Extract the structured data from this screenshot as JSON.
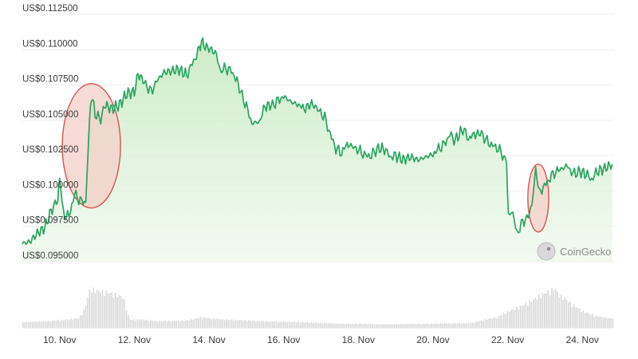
{
  "chart_data": {
    "type": "area",
    "source_watermark": "CoinGecko",
    "grid": true,
    "y_axis": {
      "ticks": [
        "US$0.112500",
        "US$0.110000",
        "US$0.107500",
        "US$0.105000",
        "US$0.102500",
        "US$0.100000",
        "US$0.097500",
        "US$0.095000"
      ],
      "values": [
        0.1125,
        0.11,
        0.1075,
        0.105,
        0.1025,
        0.1,
        0.0975,
        0.095
      ],
      "ylim": [
        0.095,
        0.1125
      ]
    },
    "x_axis": {
      "ticks": [
        "10. Nov",
        "12. Nov",
        "14. Nov",
        "16. Nov",
        "18. Nov",
        "20. Nov",
        "22. Nov",
        "24. Nov"
      ],
      "tick_days": [
        10,
        12,
        14,
        16,
        18,
        20,
        22,
        24
      ],
      "xlim": [
        9.0,
        24.85
      ]
    },
    "series": [
      {
        "type": "line",
        "color": "#2aa460",
        "fill": "#d7f0d2",
        "points": [
          [
            9.0,
            0.0963
          ],
          [
            9.2,
            0.0964
          ],
          [
            9.4,
            0.097
          ],
          [
            9.6,
            0.0974
          ],
          [
            9.8,
            0.0988
          ],
          [
            9.95,
            0.0993
          ],
          [
            10.0,
            0.1009
          ],
          [
            10.1,
            0.0984
          ],
          [
            10.25,
            0.0982
          ],
          [
            10.4,
            0.0998
          ],
          [
            10.55,
            0.0993
          ],
          [
            10.7,
            0.0992
          ],
          [
            10.8,
            0.105
          ],
          [
            10.85,
            0.1068
          ],
          [
            10.95,
            0.1055
          ],
          [
            11.1,
            0.105
          ],
          [
            11.2,
            0.1061
          ],
          [
            11.4,
            0.1058
          ],
          [
            11.6,
            0.1061
          ],
          [
            11.8,
            0.1069
          ],
          [
            12.0,
            0.107
          ],
          [
            12.1,
            0.1083
          ],
          [
            12.3,
            0.1076
          ],
          [
            12.45,
            0.107
          ],
          [
            12.6,
            0.1078
          ],
          [
            12.8,
            0.1084
          ],
          [
            13.0,
            0.1085
          ],
          [
            13.2,
            0.1086
          ],
          [
            13.4,
            0.1082
          ],
          [
            13.55,
            0.109
          ],
          [
            13.7,
            0.1098
          ],
          [
            13.8,
            0.1106
          ],
          [
            13.9,
            0.1102
          ],
          [
            14.0,
            0.1101
          ],
          [
            14.2,
            0.1097
          ],
          [
            14.3,
            0.1085
          ],
          [
            14.45,
            0.1087
          ],
          [
            14.6,
            0.1085
          ],
          [
            14.75,
            0.1078
          ],
          [
            14.85,
            0.107
          ],
          [
            15.0,
            0.106
          ],
          [
            15.15,
            0.1048
          ],
          [
            15.35,
            0.1049
          ],
          [
            15.5,
            0.106
          ],
          [
            15.7,
            0.1061
          ],
          [
            15.85,
            0.1064
          ],
          [
            16.0,
            0.1067
          ],
          [
            16.2,
            0.1063
          ],
          [
            16.4,
            0.1061
          ],
          [
            16.55,
            0.1058
          ],
          [
            16.75,
            0.1062
          ],
          [
            16.95,
            0.1057
          ],
          [
            17.1,
            0.1052
          ],
          [
            17.25,
            0.104
          ],
          [
            17.4,
            0.103
          ],
          [
            17.55,
            0.1027
          ],
          [
            17.7,
            0.1033
          ],
          [
            17.9,
            0.1031
          ],
          [
            18.05,
            0.1028
          ],
          [
            18.2,
            0.1025
          ],
          [
            18.35,
            0.1025
          ],
          [
            18.5,
            0.103
          ],
          [
            18.7,
            0.103
          ],
          [
            18.85,
            0.1024
          ],
          [
            19.0,
            0.1025
          ],
          [
            19.2,
            0.1022
          ],
          [
            19.4,
            0.1024
          ],
          [
            19.6,
            0.1022
          ],
          [
            19.8,
            0.1024
          ],
          [
            20.0,
            0.1026
          ],
          [
            20.15,
            0.103
          ],
          [
            20.3,
            0.1033
          ],
          [
            20.45,
            0.104
          ],
          [
            20.6,
            0.1036
          ],
          [
            20.8,
            0.1044
          ],
          [
            20.95,
            0.1037
          ],
          [
            21.1,
            0.104
          ],
          [
            21.3,
            0.1041
          ],
          [
            21.45,
            0.1035
          ],
          [
            21.6,
            0.1032
          ],
          [
            21.75,
            0.103
          ],
          [
            21.9,
            0.1024
          ],
          [
            21.97,
            0.102
          ],
          [
            22.02,
            0.098
          ],
          [
            22.1,
            0.0988
          ],
          [
            22.25,
            0.097
          ],
          [
            22.4,
            0.0978
          ],
          [
            22.55,
            0.0982
          ],
          [
            22.65,
            0.099
          ],
          [
            22.75,
            0.1015
          ],
          [
            22.85,
            0.0999
          ],
          [
            22.95,
            0.1002
          ],
          [
            23.1,
            0.1008
          ],
          [
            23.25,
            0.1013
          ],
          [
            23.4,
            0.1015
          ],
          [
            23.6,
            0.1018
          ],
          [
            23.75,
            0.1012
          ],
          [
            23.9,
            0.1014
          ],
          [
            24.1,
            0.1012
          ],
          [
            24.25,
            0.1008
          ],
          [
            24.4,
            0.1014
          ],
          [
            24.6,
            0.1016
          ],
          [
            24.8,
            0.1019
          ]
        ]
      },
      {
        "type": "bar",
        "color": "#d9d9d9",
        "volume_ranges": [
          [
            9.0,
            0.14
          ],
          [
            9.3,
            0.15
          ],
          [
            9.6,
            0.16
          ],
          [
            9.9,
            0.18
          ],
          [
            10.2,
            0.2
          ],
          [
            10.5,
            0.24
          ],
          [
            10.65,
            0.45
          ],
          [
            10.8,
            0.95
          ],
          [
            10.95,
            0.9
          ],
          [
            11.1,
            0.88
          ],
          [
            11.3,
            0.85
          ],
          [
            11.5,
            0.8
          ],
          [
            11.7,
            0.74
          ],
          [
            11.85,
            0.2
          ],
          [
            12.2,
            0.2
          ],
          [
            12.6,
            0.16
          ],
          [
            13.0,
            0.17
          ],
          [
            13.4,
            0.18
          ],
          [
            13.8,
            0.26
          ],
          [
            14.1,
            0.22
          ],
          [
            14.5,
            0.2
          ],
          [
            15.0,
            0.18
          ],
          [
            15.5,
            0.16
          ],
          [
            16.0,
            0.15
          ],
          [
            16.5,
            0.14
          ],
          [
            17.0,
            0.12
          ],
          [
            17.5,
            0.1
          ],
          [
            18.0,
            0.1
          ],
          [
            18.5,
            0.09
          ],
          [
            19.0,
            0.09
          ],
          [
            19.5,
            0.1
          ],
          [
            20.0,
            0.1
          ],
          [
            20.5,
            0.11
          ],
          [
            21.0,
            0.12
          ],
          [
            21.4,
            0.2
          ],
          [
            21.7,
            0.26
          ],
          [
            22.0,
            0.4
          ],
          [
            22.3,
            0.5
          ],
          [
            22.5,
            0.6
          ],
          [
            22.7,
            0.7
          ],
          [
            22.85,
            0.78
          ],
          [
            23.0,
            0.85
          ],
          [
            23.15,
            0.9
          ],
          [
            23.25,
            0.96
          ],
          [
            23.35,
            0.8
          ],
          [
            23.55,
            0.68
          ],
          [
            23.8,
            0.52
          ],
          [
            24.0,
            0.4
          ],
          [
            24.3,
            0.3
          ],
          [
            24.6,
            0.25
          ],
          [
            24.85,
            0.22
          ]
        ]
      }
    ],
    "annotations": [
      {
        "type": "ellipse",
        "center": [
          10.85,
          0.1032
        ],
        "half_width_days": 0.78,
        "half_height": 0.0044,
        "stroke": "#d9534f",
        "fill": "#f4cfc8"
      },
      {
        "type": "ellipse",
        "center": [
          22.82,
          0.0995
        ],
        "half_width_days": 0.28,
        "half_height": 0.0024,
        "stroke": "#d9534f",
        "fill": "#f4cfc8"
      }
    ]
  }
}
